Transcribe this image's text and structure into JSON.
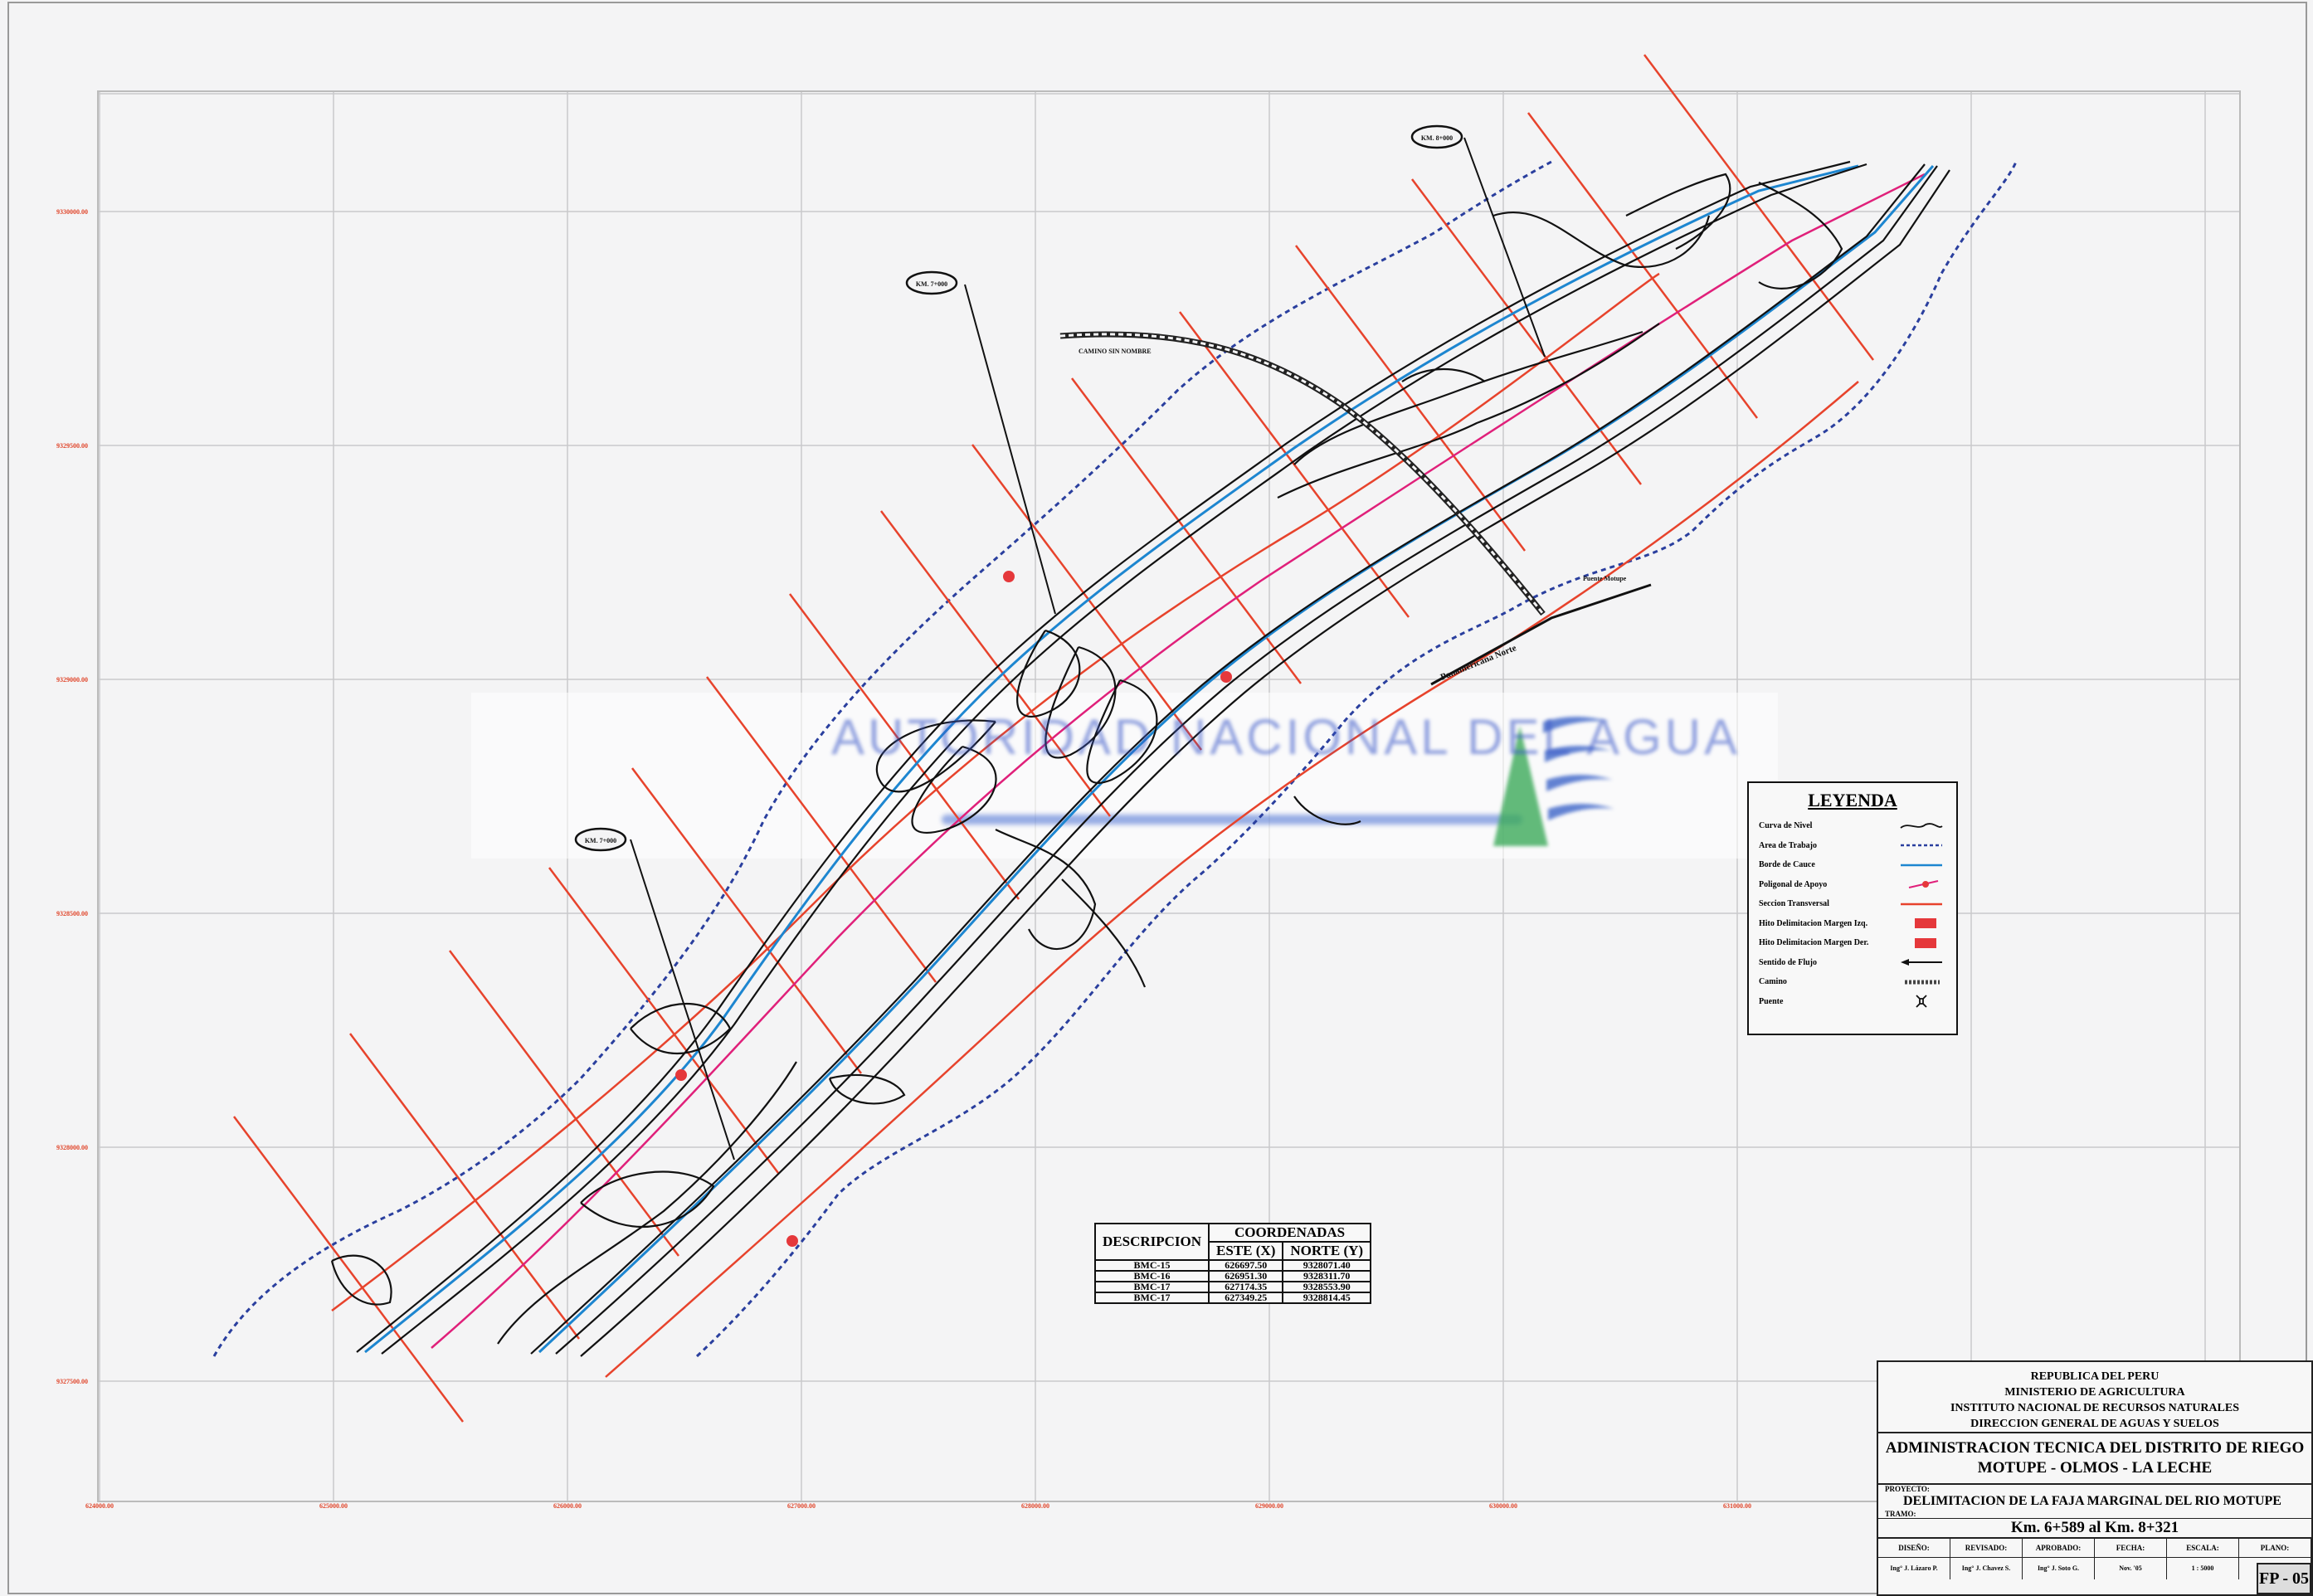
{
  "watermark": {
    "text": "AUTORIDAD NACIONAL DEL AGUA"
  },
  "map": {
    "callouts": [
      "KM. 7+000",
      "KM. 8+000",
      "KM. 7+000"
    ],
    "road_label": "CAMINO SIN NOMBRE",
    "embankment_label": "Panamericana Norte",
    "local_label": "Puente Motupe",
    "grid_x_labels": [
      "624000.00",
      "625000.00",
      "626000.00",
      "627000.00",
      "628000.00",
      "629000.00",
      "630000.00",
      "631000.00"
    ],
    "grid_y_labels": [
      "9330000.00",
      "9329500.00",
      "9329000.00",
      "9328500.00",
      "9328000.00",
      "9327500.00"
    ]
  },
  "legend": {
    "title": "LEYENDA",
    "items": [
      {
        "label": "Curva de Nivel",
        "symbol": "contour"
      },
      {
        "label": "Area de Trabajo",
        "symbol": "blue-dashed"
      },
      {
        "label": "Borde de Cauce",
        "symbol": "blue-line"
      },
      {
        "label": "Poligonal de Apoyo",
        "symbol": "magenta-point"
      },
      {
        "label": "Seccion Transversal",
        "symbol": "red-line"
      },
      {
        "label": "Hito Delimitacion Margen Izq.",
        "symbol": "red-box"
      },
      {
        "label": "Hito Delimitacion Margen Der.",
        "symbol": "red-box"
      },
      {
        "label": "Sentido de Flujo",
        "symbol": "arrow"
      },
      {
        "label": "Camino",
        "symbol": "road"
      },
      {
        "label": "Puente",
        "symbol": "bridge"
      }
    ]
  },
  "coordinates": {
    "header_desc": "DESCRIPCION",
    "header_coords": "COORDENADAS",
    "header_east": "ESTE (X)",
    "header_north": "NORTE (Y)",
    "rows": [
      {
        "desc": "BMC-15",
        "east": "626697.50",
        "north": "9328071.40"
      },
      {
        "desc": "BMC-16",
        "east": "626951.30",
        "north": "9328311.70"
      },
      {
        "desc": "BMC-17",
        "east": "627174.35",
        "north": "9328553.90"
      },
      {
        "desc": "BMC-17",
        "east": "627349.25",
        "north": "9328814.45"
      }
    ]
  },
  "titleblock": {
    "line1": "REPUBLICA DEL PERU",
    "line2": "MINISTERIO DE AGRICULTURA",
    "line3": "INSTITUTO NACIONAL DE RECURSOS NATURALES",
    "line4": "DIRECCION GENERAL DE AGUAS Y SUELOS",
    "line5": "ADMINISTRACION TECNICA DEL DISTRITO DE RIEGO",
    "line6": "MOTUPE - OLMOS - LA LECHE",
    "project_label": "PROYECTO:",
    "project": "DELIMITACION DE LA FAJA MARGINAL DEL RIO MOTUPE",
    "tramo_label": "TRAMO:",
    "tramo": "Km. 6+589 al Km. 8+321",
    "columns": [
      "DISEÑO:",
      "REVISADO:",
      "APROBADO:",
      "FECHA:",
      "ESCALA:",
      "PLANO:"
    ],
    "values": [
      "Ing° J. Lázaro P.",
      "Ing° J. Chavez S.",
      "Ing° J. Soto G.",
      "Nov. '05",
      "1 : 5000",
      ""
    ],
    "sheet": "FP - 05"
  }
}
